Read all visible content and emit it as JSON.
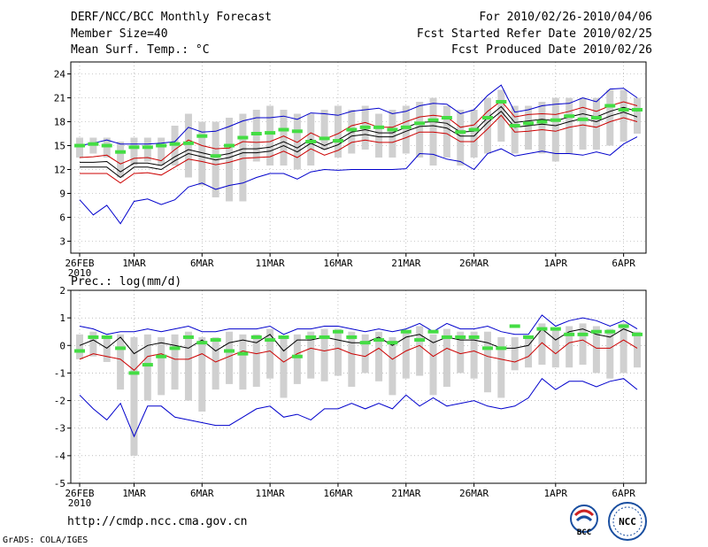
{
  "header": {
    "title": "DERF/NCC/BCC Monthly Forecast",
    "member_size": "Member Size=40",
    "variable": "Mean Surf. Temp.: °C",
    "for_range": "For 2010/02/26-2010/04/06",
    "started": "Fcst Started Refer Date 2010/02/25",
    "produced": "Fcst Produced Date 2010/02/26"
  },
  "footer": {
    "url": "http://cmdp.ncc.cma.gov.cn",
    "credit": "GrADS: COLA/IGES",
    "logo_left": "BCC",
    "logo_right": "NCC"
  },
  "colors": {
    "envelope": "#0000cc",
    "spread": "#cc0000",
    "mean": "#000000",
    "median": "#44dd44",
    "bar": "#d0d0d0",
    "grid": "#999999"
  },
  "chart_data": [
    {
      "type": "line",
      "title": "Mean Surf. Temp.: °C",
      "x_ticks": [
        "26FEB",
        "1MAR",
        "6MAR",
        "11MAR",
        "16MAR",
        "21MAR",
        "26MAR",
        "1APR",
        "6APR"
      ],
      "x_tick_days": [
        0,
        4,
        9,
        14,
        19,
        24,
        29,
        35,
        40
      ],
      "x_year": "2010",
      "yticks": [
        3,
        6,
        9,
        12,
        15,
        18,
        21,
        24
      ],
      "ylim": [
        1.5,
        25.5
      ],
      "grid": true,
      "series": [
        {
          "name": "max",
          "values": [
            8.2,
            6.3,
            7.5,
            5.2,
            8.0,
            8.3,
            7.6,
            8.2,
            9.8,
            10.3,
            9.5,
            10.0,
            10.3,
            11.0,
            11.5,
            11.5,
            10.8,
            11.7,
            12.0,
            11.9,
            12.0,
            12.0,
            12.0,
            12.0,
            12.1,
            14.0,
            13.9,
            13.3,
            13.0,
            12.0,
            14.0,
            14.6,
            13.7,
            14.0,
            14.3,
            14.0,
            14.0,
            13.8,
            14.2,
            13.8,
            15.2,
            16.1
          ]
        },
        {
          "name": "upper",
          "values": [
            11.5,
            11.5,
            11.5,
            10.3,
            11.5,
            11.6,
            11.3,
            12.3,
            13.3,
            13.0,
            12.6,
            12.9,
            13.4,
            13.5,
            13.6,
            14.3,
            13.5,
            14.6,
            13.8,
            14.4,
            15.4,
            15.7,
            15.4,
            15.4,
            16.0,
            16.7,
            16.7,
            16.5,
            15.5,
            15.5,
            17.1,
            18.8,
            16.7,
            16.8,
            17.0,
            16.8,
            17.3,
            17.6,
            17.3,
            18.0,
            18.5,
            18.0
          ]
        },
        {
          "name": "lower",
          "values": [
            12.3,
            12.3,
            12.3,
            11.0,
            12.3,
            12.3,
            12.0,
            13.1,
            14.0,
            13.6,
            13.2,
            13.5,
            14.1,
            14.1,
            14.3,
            15.0,
            14.2,
            15.3,
            14.5,
            15.1,
            16.2,
            16.4,
            16.1,
            16.1,
            16.8,
            17.4,
            17.5,
            17.2,
            16.2,
            16.2,
            17.9,
            19.3,
            17.3,
            17.5,
            17.7,
            17.5,
            18.0,
            18.4,
            18.0,
            18.7,
            19.2,
            18.6
          ]
        },
        {
          "name": "mean",
          "values": [
            12.9,
            12.9,
            13.0,
            11.7,
            12.8,
            12.8,
            12.5,
            13.6,
            14.5,
            14.1,
            13.7,
            14.0,
            14.6,
            14.6,
            14.8,
            15.5,
            14.7,
            15.8,
            15.0,
            15.7,
            16.7,
            17.0,
            16.6,
            16.6,
            17.3,
            17.9,
            18.0,
            17.8,
            16.7,
            16.8,
            18.5,
            19.9,
            17.9,
            18.1,
            18.3,
            18.1,
            18.6,
            19.0,
            18.6,
            19.3,
            19.8,
            19.3
          ]
        },
        {
          "name": "upper_red",
          "values": [
            13.5,
            13.6,
            13.8,
            12.7,
            13.4,
            13.5,
            13.1,
            14.5,
            15.7,
            15.0,
            14.6,
            14.7,
            15.5,
            15.4,
            15.5,
            16.2,
            15.4,
            16.6,
            15.8,
            16.5,
            17.5,
            17.9,
            17.3,
            17.3,
            18.0,
            18.6,
            18.8,
            18.6,
            17.3,
            17.6,
            19.3,
            20.6,
            18.6,
            18.9,
            19.0,
            18.9,
            19.3,
            19.8,
            19.3,
            20.0,
            20.5,
            20.0
          ]
        },
        {
          "name": "min",
          "values": [
            15.0,
            15.3,
            15.7,
            15.2,
            15.2,
            15.2,
            15.3,
            15.5,
            17.3,
            16.7,
            16.8,
            17.4,
            18.1,
            18.5,
            18.5,
            18.7,
            18.3,
            19.1,
            19.0,
            18.8,
            19.3,
            19.5,
            19.7,
            19.0,
            19.3,
            20.0,
            20.3,
            20.2,
            19.0,
            19.5,
            21.3,
            22.6,
            19.2,
            19.5,
            20.0,
            20.2,
            20.3,
            21.0,
            20.5,
            22.1,
            22.2,
            21.0
          ]
        },
        {
          "name": "median",
          "values": [
            15.0,
            15.2,
            15.0,
            14.2,
            14.8,
            14.8,
            15.0,
            15.2,
            15.3,
            16.2,
            13.7,
            15.0,
            16.0,
            16.5,
            16.6,
            17.0,
            16.8,
            15.5,
            15.9,
            15.6,
            17.0,
            17.3,
            17.3,
            17.0,
            17.3,
            17.8,
            18.2,
            18.5,
            16.7,
            17.0,
            18.5,
            20.5,
            17.5,
            17.8,
            18.0,
            18.2,
            18.7,
            18.3,
            18.5,
            20.0,
            19.5,
            19.5
          ]
        },
        {
          "name": "bar_low",
          "values": [
            13.5,
            14.0,
            13.5,
            11.0,
            12.5,
            13.0,
            12.5,
            12.5,
            11.0,
            10.0,
            8.5,
            8.0,
            8.0,
            13.0,
            12.5,
            12.5,
            12.0,
            12.5,
            14.5,
            13.5,
            14.0,
            14.5,
            13.5,
            13.5,
            14.0,
            13.5,
            12.5,
            13.5,
            12.5,
            13.5,
            14.0,
            15.5,
            14.0,
            14.5,
            14.0,
            13.0,
            14.0,
            14.5,
            14.5,
            15.0,
            15.5,
            16.5
          ]
        },
        {
          "name": "bar_high",
          "values": [
            16.0,
            16.0,
            16.0,
            15.5,
            16.0,
            16.0,
            16.0,
            17.5,
            19.0,
            18.0,
            18.0,
            18.5,
            19.0,
            19.5,
            20.0,
            19.5,
            19.0,
            19.0,
            19.5,
            20.0,
            19.5,
            20.0,
            19.0,
            19.5,
            20.0,
            20.5,
            21.0,
            20.0,
            19.5,
            19.5,
            21.0,
            22.0,
            20.0,
            20.0,
            20.5,
            21.0,
            21.0,
            21.0,
            21.0,
            22.0,
            22.0,
            21.0
          ]
        }
      ]
    },
    {
      "type": "line",
      "title": "Prec.: log(mm/d)",
      "x_ticks": [
        "26FEB",
        "1MAR",
        "6MAR",
        "11MAR",
        "16MAR",
        "21MAR",
        "26MAR",
        "1APR",
        "6APR"
      ],
      "x_tick_days": [
        0,
        4,
        9,
        14,
        19,
        24,
        29,
        35,
        40
      ],
      "x_year": "2010",
      "yticks": [
        -5,
        -4,
        -3,
        -2,
        -1,
        0,
        1,
        2
      ],
      "ylim": [
        -5,
        2
      ],
      "grid": true,
      "series": [
        {
          "name": "max",
          "values": [
            0.7,
            0.6,
            0.4,
            0.5,
            0.5,
            0.6,
            0.5,
            0.6,
            0.7,
            0.5,
            0.5,
            0.6,
            0.6,
            0.6,
            0.7,
            0.4,
            0.6,
            0.6,
            0.7,
            0.7,
            0.6,
            0.5,
            0.6,
            0.5,
            0.6,
            0.8,
            0.5,
            0.8,
            0.6,
            0.6,
            0.7,
            0.5,
            0.4,
            0.4,
            1.1,
            0.7,
            0.9,
            1.0,
            0.9,
            0.7,
            0.9,
            0.6
          ]
        },
        {
          "name": "mean",
          "values": [
            0.0,
            0.2,
            -0.1,
            0.3,
            -0.3,
            0.0,
            0.1,
            0.0,
            -0.1,
            0.2,
            -0.2,
            0.1,
            0.2,
            0.1,
            0.4,
            -0.2,
            0.2,
            0.2,
            0.3,
            0.2,
            0.1,
            0.1,
            0.3,
            0.0,
            0.3,
            0.4,
            0.1,
            0.3,
            0.2,
            0.2,
            0.1,
            -0.1,
            -0.1,
            0.0,
            0.6,
            0.2,
            0.5,
            0.6,
            0.4,
            0.3,
            0.6,
            0.4
          ]
        },
        {
          "name": "lower_red",
          "values": [
            -0.5,
            -0.3,
            -0.4,
            -0.5,
            -0.9,
            -0.4,
            -0.3,
            -0.5,
            -0.5,
            -0.3,
            -0.6,
            -0.4,
            -0.2,
            -0.3,
            -0.2,
            -0.6,
            -0.3,
            -0.1,
            -0.2,
            -0.1,
            -0.3,
            -0.4,
            -0.1,
            -0.5,
            -0.2,
            0.0,
            -0.4,
            -0.1,
            -0.3,
            -0.2,
            -0.4,
            -0.5,
            -0.6,
            -0.4,
            0.1,
            -0.3,
            0.1,
            0.2,
            -0.1,
            -0.1,
            0.2,
            -0.1
          ]
        },
        {
          "name": "min",
          "values": [
            -1.8,
            -2.3,
            -2.7,
            -2.1,
            -3.3,
            -2.2,
            -2.2,
            -2.6,
            -2.7,
            -2.8,
            -2.9,
            -2.9,
            -2.6,
            -2.3,
            -2.2,
            -2.6,
            -2.5,
            -2.7,
            -2.3,
            -2.3,
            -2.1,
            -2.3,
            -2.1,
            -2.3,
            -1.8,
            -2.2,
            -1.9,
            -2.2,
            -2.1,
            -2.0,
            -2.2,
            -2.3,
            -2.2,
            -1.9,
            -1.2,
            -1.6,
            -1.3,
            -1.3,
            -1.5,
            -1.3,
            -1.2,
            -1.6
          ]
        },
        {
          "name": "median",
          "values": [
            -0.2,
            0.3,
            0.3,
            -0.1,
            -1.0,
            -0.7,
            -0.4,
            -0.1,
            0.3,
            0.1,
            0.2,
            -0.2,
            -0.3,
            0.3,
            0.2,
            0.3,
            -0.4,
            0.3,
            0.3,
            0.5,
            0.3,
            0.1,
            0.2,
            0.1,
            0.5,
            0.2,
            0.5,
            0.3,
            0.3,
            0.3,
            -0.1,
            -0.1,
            0.7,
            0.3,
            0.6,
            0.6,
            0.4,
            0.4,
            0.5,
            0.5,
            0.7,
            0.4
          ]
        },
        {
          "name": "bar_low",
          "values": [
            -0.5,
            -0.4,
            -0.6,
            -1.6,
            -4.0,
            -2.0,
            -1.8,
            -1.6,
            -2.0,
            -2.4,
            -1.6,
            -1.4,
            -1.6,
            -1.5,
            -1.2,
            -1.9,
            -1.4,
            -1.2,
            -1.3,
            -1.1,
            -1.5,
            -1.0,
            -1.3,
            -1.8,
            -1.2,
            -1.1,
            -1.8,
            -1.5,
            -1.0,
            -1.2,
            -1.7,
            -1.9,
            -0.9,
            -0.8,
            -0.7,
            -0.8,
            -0.8,
            -0.7,
            -1.0,
            -1.2,
            -1.0,
            -0.8
          ]
        },
        {
          "name": "bar_high",
          "values": [
            0.4,
            0.5,
            0.3,
            0.4,
            0.3,
            0.4,
            0.3,
            0.4,
            0.5,
            0.3,
            0.3,
            0.5,
            0.4,
            0.4,
            0.6,
            0.3,
            0.4,
            0.5,
            0.6,
            0.6,
            0.5,
            0.4,
            0.5,
            0.3,
            0.5,
            0.7,
            0.4,
            0.6,
            0.5,
            0.5,
            0.5,
            0.3,
            0.3,
            0.3,
            0.8,
            0.6,
            0.7,
            0.8,
            0.7,
            0.6,
            0.8,
            0.5
          ]
        }
      ]
    }
  ]
}
